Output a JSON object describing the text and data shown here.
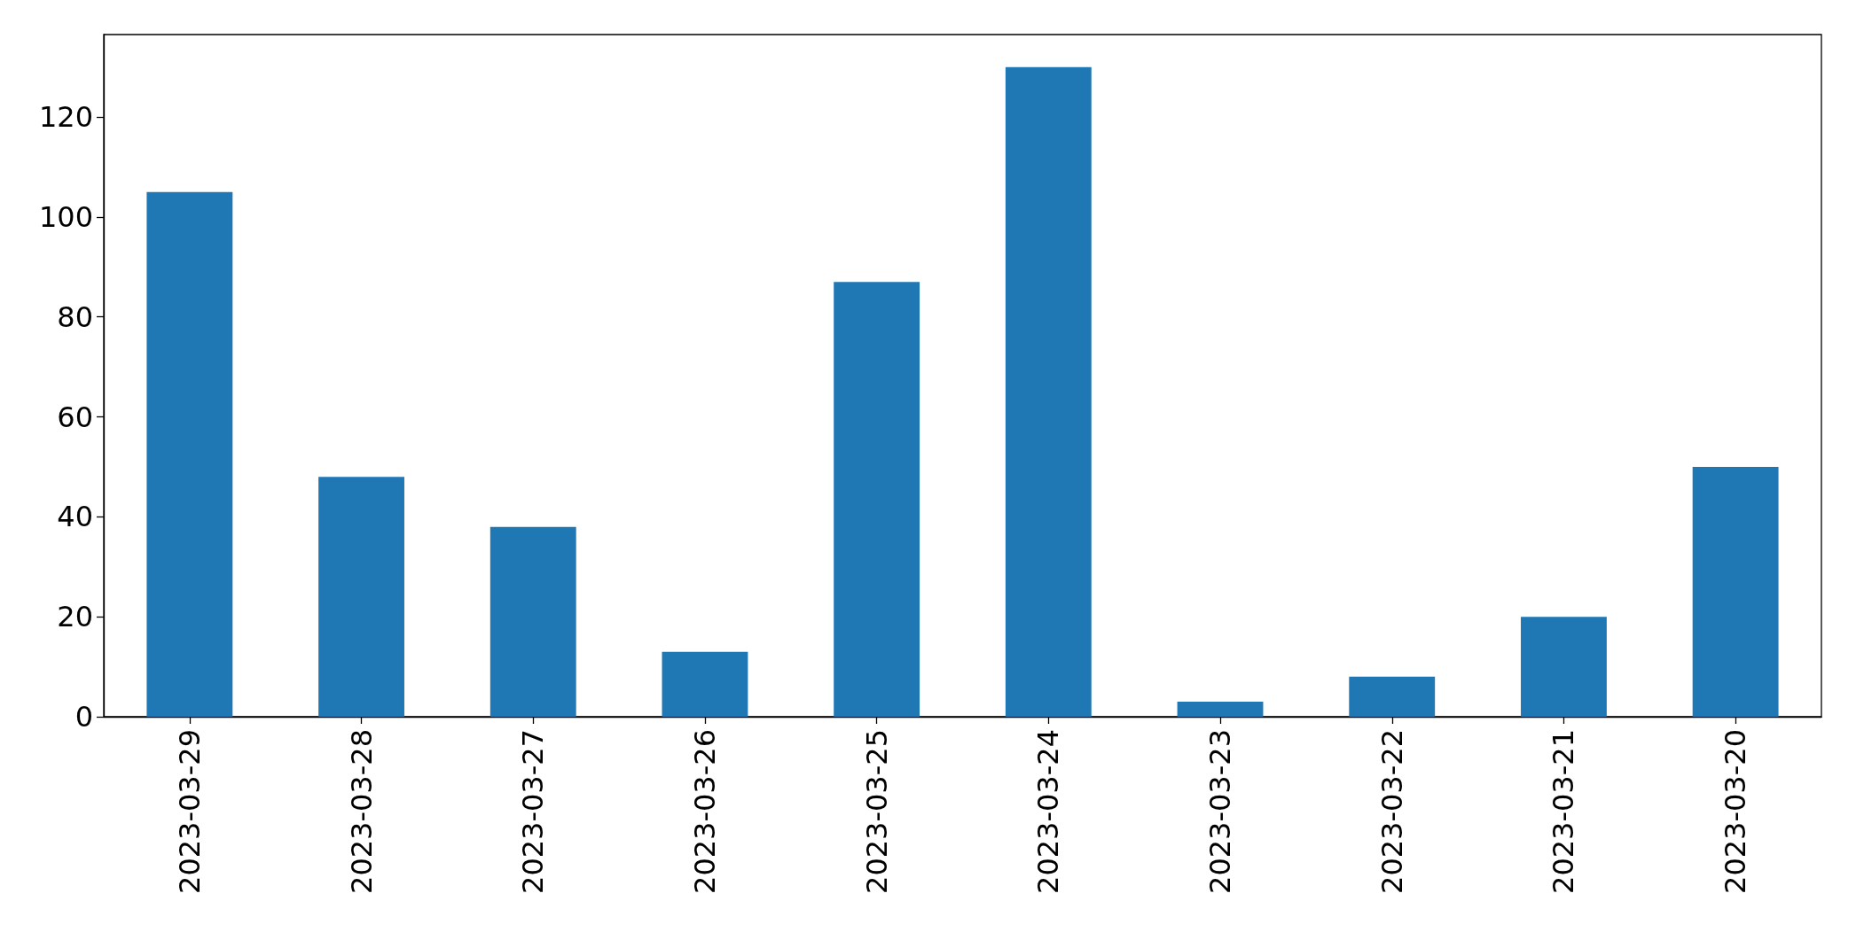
{
  "chart_data": {
    "type": "bar",
    "categories": [
      "2023-03-29",
      "2023-03-28",
      "2023-03-27",
      "2023-03-26",
      "2023-03-25",
      "2023-03-24",
      "2023-03-23",
      "2023-03-22",
      "2023-03-21",
      "2023-03-20"
    ],
    "values": [
      105,
      48,
      38,
      13,
      87,
      130,
      3,
      8,
      20,
      50
    ],
    "color": "#1f77b4",
    "ylim": [
      0,
      136.5
    ],
    "yticks": [
      0,
      20,
      40,
      60,
      80,
      100,
      120
    ]
  }
}
